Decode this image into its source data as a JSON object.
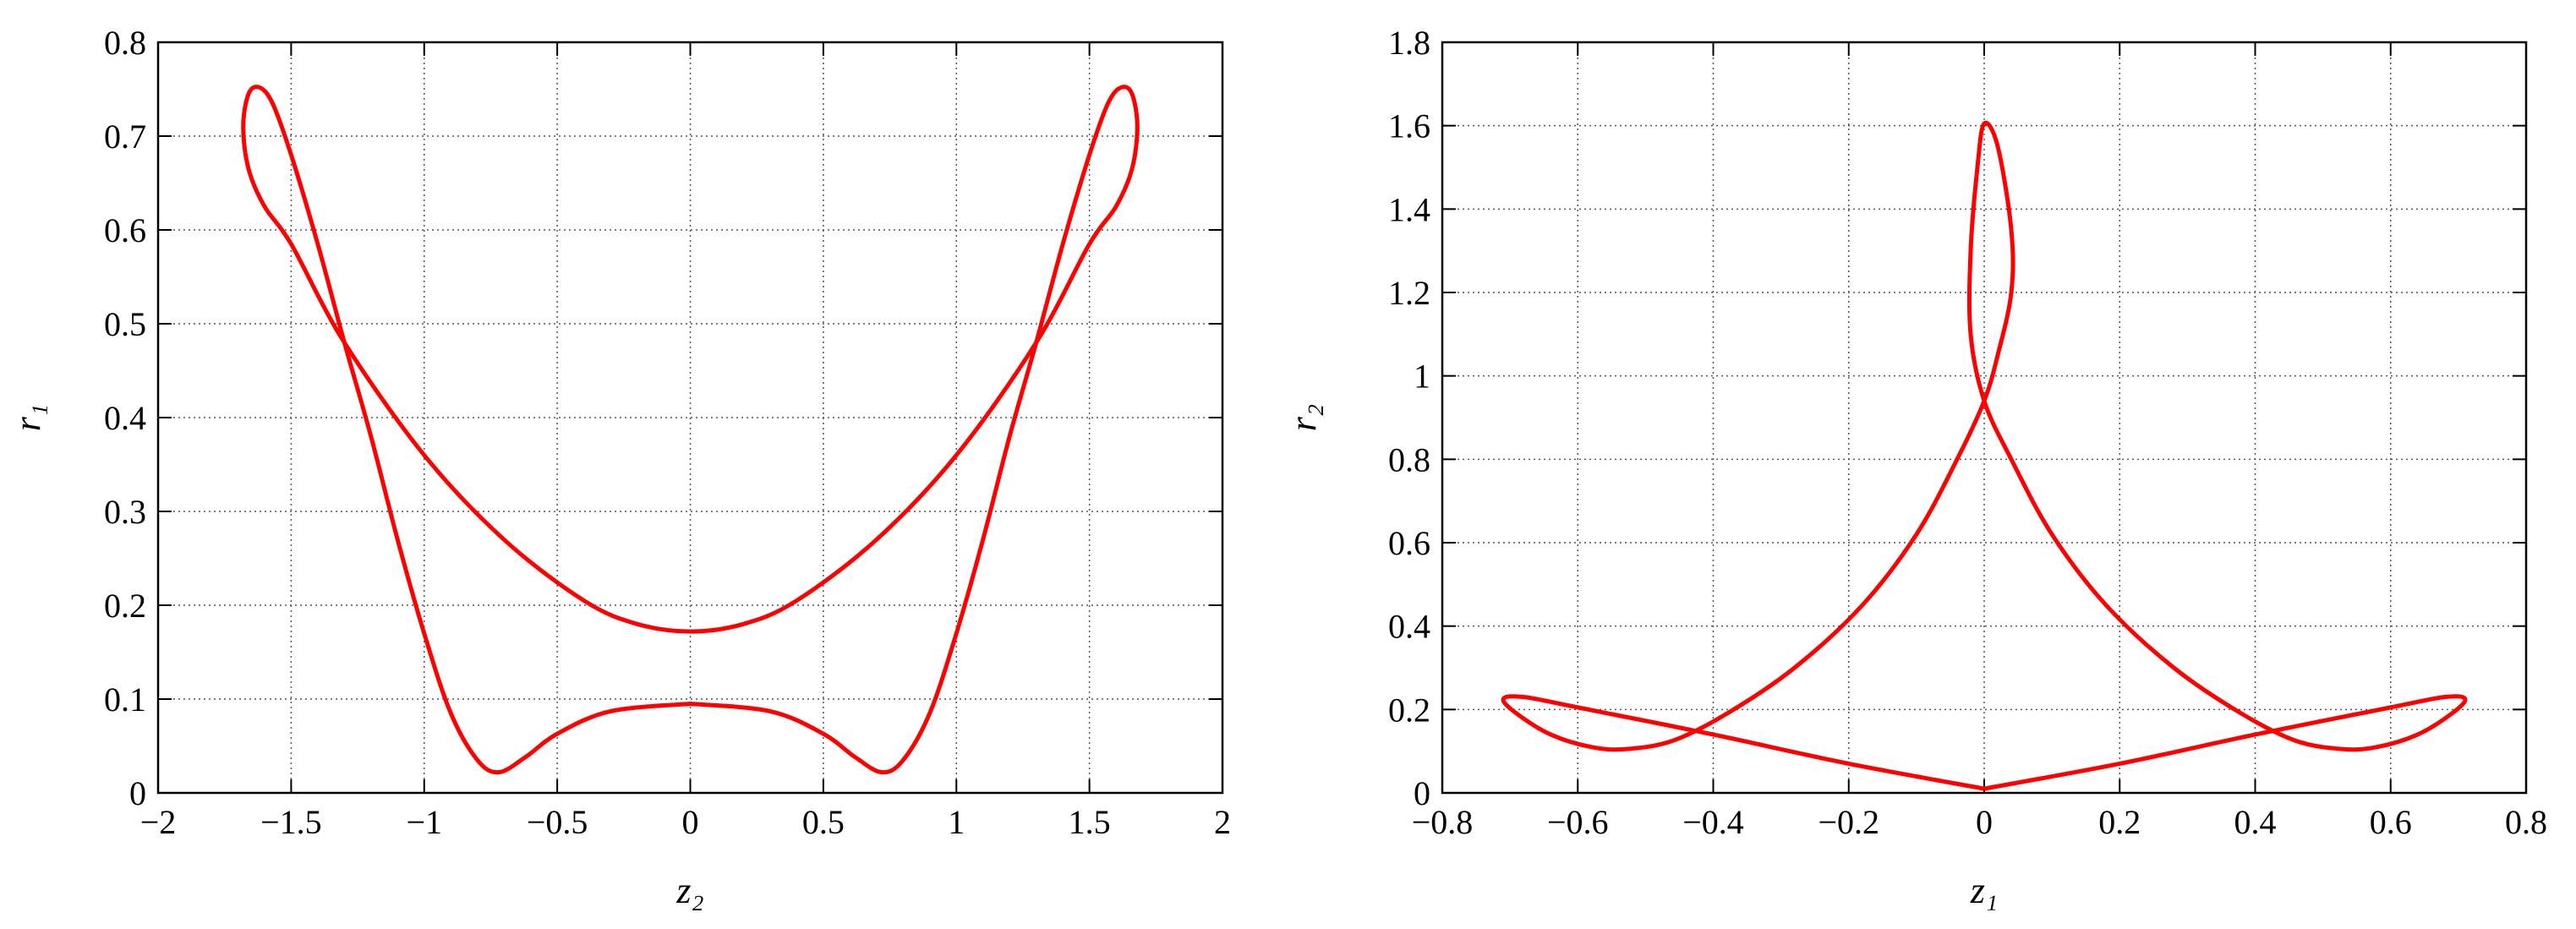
{
  "chart_data": [
    {
      "type": "line",
      "xlabel": "z₂",
      "ylabel": "r₁",
      "color": "#ff0000",
      "grid": true,
      "xlim": [
        -2,
        2
      ],
      "ylim": [
        0,
        0.8
      ],
      "xticks": [
        {
          "value": -2,
          "label": "−2"
        },
        {
          "value": -1.5,
          "label": "−1.5"
        },
        {
          "value": -1,
          "label": "−1"
        },
        {
          "value": -0.5,
          "label": "−0.5"
        },
        0,
        0.5,
        1,
        1.5,
        2
      ],
      "yticks": [
        0,
        0.1,
        0.2,
        0.3,
        0.4,
        0.5,
        0.6,
        0.7,
        0.8
      ],
      "x": [
        0,
        0.3,
        0.5,
        0.62,
        0.72,
        0.8,
        0.9,
        1.0,
        1.1,
        1.2,
        1.3,
        1.4,
        1.5,
        1.57,
        1.62,
        1.66,
        1.68,
        1.66,
        1.6,
        1.5,
        1.3,
        1.0,
        0.7,
        0.4,
        0.2,
        0,
        -0.2,
        -0.4,
        -0.7,
        -1.0,
        -1.3,
        -1.5,
        -1.6,
        -1.66,
        -1.68,
        -1.66,
        -1.62,
        -1.57,
        -1.5,
        -1.4,
        -1.3,
        -1.2,
        -1.1,
        -1.0,
        -0.9,
        -0.8,
        -0.72,
        -0.62,
        -0.5,
        -0.3,
        0
      ],
      "y": [
        0.095,
        0.087,
        0.063,
        0.038,
        0.022,
        0.035,
        0.085,
        0.17,
        0.27,
        0.38,
        0.48,
        0.585,
        0.68,
        0.735,
        0.752,
        0.745,
        0.71,
        0.665,
        0.625,
        0.585,
        0.48,
        0.36,
        0.27,
        0.205,
        0.18,
        0.172,
        0.18,
        0.205,
        0.27,
        0.36,
        0.48,
        0.585,
        0.625,
        0.665,
        0.71,
        0.745,
        0.752,
        0.735,
        0.68,
        0.585,
        0.48,
        0.38,
        0.27,
        0.17,
        0.085,
        0.035,
        0.022,
        0.038,
        0.063,
        0.087,
        0.095
      ]
    },
    {
      "type": "line",
      "xlabel": "z₁",
      "ylabel": "r₂",
      "color": "#ff0000",
      "grid": true,
      "xlim": [
        -0.8,
        0.8
      ],
      "ylim": [
        0,
        1.8
      ],
      "xticks": [
        {
          "value": -0.8,
          "label": "−0.8"
        },
        {
          "value": -0.6,
          "label": "−0.6"
        },
        {
          "value": -0.4,
          "label": "−0.4"
        },
        {
          "value": -0.2,
          "label": "−0.2"
        },
        0,
        0.2,
        0.4,
        0.6,
        0.8
      ],
      "yticks": [
        0,
        0.2,
        0.4,
        0.6,
        0.8,
        1,
        1.2,
        1.4,
        1.6,
        1.8
      ],
      "x": [
        0,
        0.2,
        0.4,
        0.6,
        0.68,
        0.71,
        0.69,
        0.64,
        0.58,
        0.53,
        0.46,
        0.38,
        0.28,
        0.18,
        0.1,
        0.04,
        0,
        -0.02,
        -0.02,
        -0.01,
        0,
        0.02,
        0.04,
        0.04,
        0.02,
        0,
        -0.04,
        -0.1,
        -0.18,
        -0.28,
        -0.38,
        -0.46,
        -0.53,
        -0.58,
        -0.64,
        -0.69,
        -0.71,
        -0.68,
        -0.6,
        -0.4,
        -0.2,
        0
      ],
      "y": [
        0.01,
        0.07,
        0.14,
        0.205,
        0.23,
        0.225,
        0.19,
        0.14,
        0.11,
        0.105,
        0.125,
        0.19,
        0.3,
        0.45,
        0.62,
        0.8,
        0.94,
        1.1,
        1.3,
        1.5,
        1.605,
        1.55,
        1.35,
        1.2,
        1.05,
        0.94,
        0.8,
        0.62,
        0.45,
        0.3,
        0.19,
        0.125,
        0.105,
        0.11,
        0.14,
        0.19,
        0.225,
        0.23,
        0.205,
        0.14,
        0.07,
        0.01
      ]
    }
  ]
}
